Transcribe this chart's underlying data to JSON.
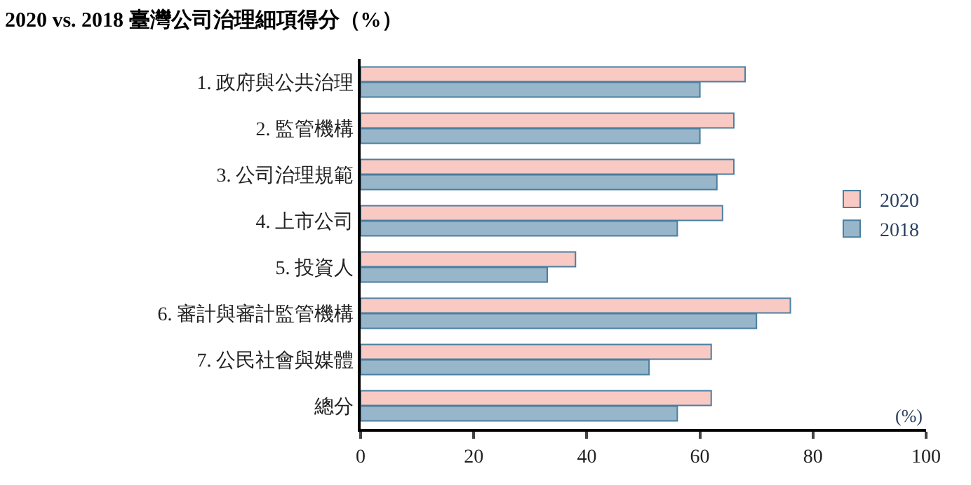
{
  "chart_data": {
    "type": "bar",
    "orientation": "horizontal",
    "title": "2020 vs. 2018 臺灣公司治理細項得分（%）",
    "categories": [
      "1. 政府與公共治理",
      "2. 監管機構",
      "3. 公司治理規範",
      "4. 上市公司",
      "5. 投資人",
      "6. 審計與審計監管機構",
      "7. 公民社會與媒體",
      "總分"
    ],
    "series": [
      {
        "name": "2020",
        "color": "#f9c9c4",
        "values": [
          68,
          66,
          66,
          64,
          38,
          76,
          62,
          62
        ]
      },
      {
        "name": "2018",
        "color": "#98b6ca",
        "values": [
          60,
          60,
          63,
          56,
          33,
          70,
          51,
          56
        ]
      }
    ],
    "xlim": [
      0,
      100
    ],
    "xticks": [
      0,
      20,
      40,
      60,
      80,
      100
    ],
    "annotations": [
      "(%)"
    ],
    "legend": "right"
  }
}
